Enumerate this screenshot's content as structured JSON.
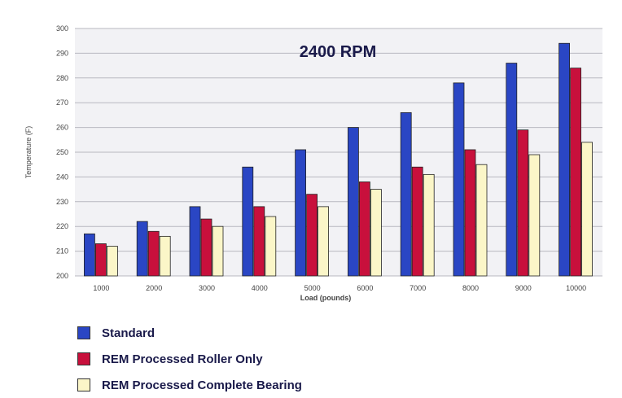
{
  "chart_data": {
    "type": "bar",
    "title": "2400 RPM",
    "xlabel": "Load (pounds)",
    "ylabel": "Temperature (F)",
    "ylim": [
      200,
      300
    ],
    "yticks": [
      200,
      210,
      220,
      230,
      240,
      250,
      260,
      270,
      280,
      290,
      300
    ],
    "categories": [
      "1000",
      "2000",
      "3000",
      "4000",
      "5000",
      "6000",
      "7000",
      "8000",
      "9000",
      "10000"
    ],
    "grid": true,
    "legend_position": "bottom-left",
    "series": [
      {
        "name": "Standard",
        "color": "#2a46c4",
        "values": [
          217,
          222,
          228,
          244,
          251,
          260,
          266,
          278,
          286,
          294
        ]
      },
      {
        "name": "REM Processed Roller Only",
        "color": "#c8103c",
        "values": [
          213,
          218,
          223,
          228,
          233,
          238,
          244,
          251,
          259,
          284
        ]
      },
      {
        "name": "REM Processed Complete Bearing",
        "color": "#fbf6c8",
        "values": [
          212,
          216,
          220,
          224,
          228,
          235,
          241,
          245,
          249,
          254
        ]
      }
    ]
  }
}
